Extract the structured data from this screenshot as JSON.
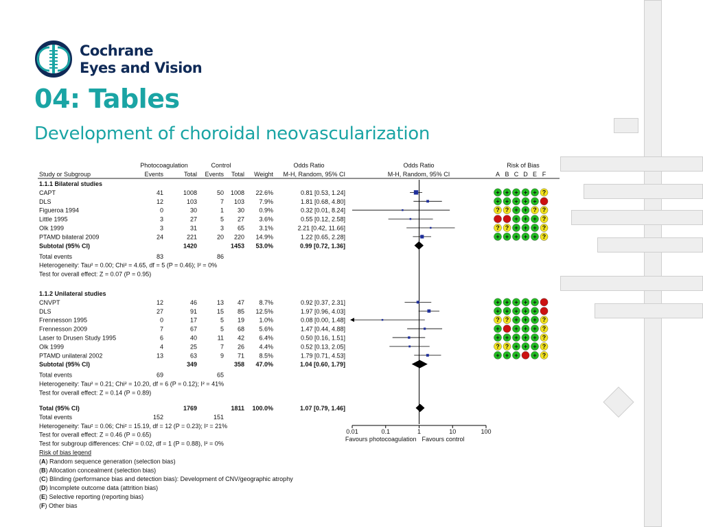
{
  "slide": {
    "brand_line1": "Cochrane",
    "brand_line2": "Eyes and Vision",
    "title": "04: Tables",
    "subtitle": "Development of choroidal neovascularization",
    "brand_color": "#0f2a57",
    "accent_color": "#1aa4a4"
  },
  "chart_data": {
    "type": "forest",
    "scale": "log",
    "xlim": [
      0.01,
      100
    ],
    "x_ticks": [
      "0.01",
      "0.1",
      "1",
      "10",
      "100"
    ],
    "favours_left": "Favours photocoagulation",
    "favours_right": "Favours control",
    "headers": {
      "group1": "Photocoagulation",
      "group2": "Control",
      "study": "Study or Subgroup",
      "events1": "Events",
      "total1": "Total",
      "events2": "Events",
      "total2": "Total",
      "weight": "Weight",
      "or_text_title": "Odds Ratio",
      "or_text_method": "M-H, Random, 95% CI",
      "or_plot_title": "Odds Ratio",
      "or_plot_method": "M-H, Random, 95% CI",
      "rob_title": "Risk of Bias",
      "rob_letters": [
        "A",
        "B",
        "C",
        "D",
        "E",
        "F"
      ]
    },
    "rob_colors": {
      "+": "#22bb22",
      "?": "#f2e21e",
      "-": "#cc1111"
    },
    "subgroups": [
      {
        "title": "1.1.1 Bilateral studies",
        "studies": [
          {
            "name": "CAPT",
            "e1": "41",
            "t1": "1008",
            "e2": "50",
            "t2": "1008",
            "weight": "22.6%",
            "ci_text": "0.81 [0.53, 1.24]",
            "or": 0.81,
            "lo": 0.53,
            "hi": 1.24,
            "w": 22.6,
            "rob": [
              "+",
              "+",
              "+",
              "+",
              "+",
              "?"
            ]
          },
          {
            "name": "DLS",
            "e1": "12",
            "t1": "103",
            "e2": "7",
            "t2": "103",
            "weight": "7.9%",
            "ci_text": "1.81 [0.68, 4.80]",
            "or": 1.81,
            "lo": 0.68,
            "hi": 4.8,
            "w": 7.9,
            "rob": [
              "+",
              "+",
              "+",
              "+",
              "+",
              "-"
            ]
          },
          {
            "name": "Figueroa 1994",
            "e1": "0",
            "t1": "30",
            "e2": "1",
            "t2": "30",
            "weight": "0.9%",
            "ci_text": "0.32 [0.01, 8.24]",
            "or": 0.32,
            "lo": 0.01,
            "hi": 8.24,
            "w": 0.9,
            "rob": [
              "?",
              "?",
              "+",
              "+",
              "?",
              "?"
            ]
          },
          {
            "name": "Little 1995",
            "e1": "3",
            "t1": "27",
            "e2": "5",
            "t2": "27",
            "weight": "3.6%",
            "ci_text": "0.55 [0.12, 2.58]",
            "or": 0.55,
            "lo": 0.12,
            "hi": 2.58,
            "w": 3.6,
            "rob": [
              "-",
              "-",
              "+",
              "+",
              "+",
              "?"
            ]
          },
          {
            "name": "Olk 1999",
            "e1": "3",
            "t1": "31",
            "e2": "3",
            "t2": "65",
            "weight": "3.1%",
            "ci_text": "2.21 [0.42, 11.66]",
            "or": 2.21,
            "lo": 0.42,
            "hi": 11.66,
            "w": 3.1,
            "rob": [
              "?",
              "?",
              "+",
              "+",
              "+",
              "?"
            ]
          },
          {
            "name": "PTAMD bilateral 2009",
            "e1": "24",
            "t1": "221",
            "e2": "20",
            "t2": "220",
            "weight": "14.9%",
            "ci_text": "1.22 [0.65, 2.28]",
            "or": 1.22,
            "lo": 0.65,
            "hi": 2.28,
            "w": 14.9,
            "rob": [
              "+",
              "+",
              "+",
              "+",
              "+",
              "?"
            ]
          }
        ],
        "subtotal": {
          "label": "Subtotal (95% CI)",
          "t1": "1420",
          "t2": "1453",
          "weight": "53.0%",
          "ci_text": "0.99 [0.72, 1.36]",
          "or": 0.99,
          "lo": 0.72,
          "hi": 1.36
        },
        "total_events": {
          "label": "Total events",
          "e1": "83",
          "e2": "86"
        },
        "heterogeneity": "Heterogeneity: Tau² = 0.00; Chi² = 4.65, df = 5 (P = 0.46); I² = 0%",
        "overall_effect": "Test for overall effect: Z = 0.07 (P = 0.95)"
      },
      {
        "title": "1.1.2 Unilateral studies",
        "studies": [
          {
            "name": "CNVPT",
            "e1": "12",
            "t1": "46",
            "e2": "13",
            "t2": "47",
            "weight": "8.7%",
            "ci_text": "0.92 [0.37, 2.31]",
            "or": 0.92,
            "lo": 0.37,
            "hi": 2.31,
            "w": 8.7,
            "rob": [
              "+",
              "+",
              "+",
              "+",
              "+",
              "-"
            ]
          },
          {
            "name": "DLS",
            "e1": "27",
            "t1": "91",
            "e2": "15",
            "t2": "85",
            "weight": "12.5%",
            "ci_text": "1.97 [0.96, 4.03]",
            "or": 1.97,
            "lo": 0.96,
            "hi": 4.03,
            "w": 12.5,
            "rob": [
              "+",
              "+",
              "+",
              "+",
              "+",
              "-"
            ]
          },
          {
            "name": "Frennesson 1995",
            "e1": "0",
            "t1": "17",
            "e2": "5",
            "t2": "19",
            "weight": "1.0%",
            "ci_text": "0.08 [0.00, 1.48]",
            "or": 0.08,
            "lo": 0.0,
            "hi": 1.48,
            "w": 1.0,
            "rob": [
              "?",
              "?",
              "+",
              "+",
              "+",
              "?"
            ]
          },
          {
            "name": "Frennesson 2009",
            "e1": "7",
            "t1": "67",
            "e2": "5",
            "t2": "68",
            "weight": "5.6%",
            "ci_text": "1.47 [0.44, 4.88]",
            "or": 1.47,
            "lo": 0.44,
            "hi": 4.88,
            "w": 5.6,
            "rob": [
              "+",
              "-",
              "+",
              "+",
              "+",
              "?"
            ]
          },
          {
            "name": "Laser to Drusen Study 1995",
            "e1": "6",
            "t1": "40",
            "e2": "11",
            "t2": "42",
            "weight": "6.4%",
            "ci_text": "0.50 [0.16, 1.51]",
            "or": 0.5,
            "lo": 0.16,
            "hi": 1.51,
            "w": 6.4,
            "rob": [
              "+",
              "+",
              "+",
              "+",
              "+",
              "?"
            ]
          },
          {
            "name": "Olk 1999",
            "e1": "4",
            "t1": "25",
            "e2": "7",
            "t2": "26",
            "weight": "4.4%",
            "ci_text": "0.52 [0.13, 2.05]",
            "or": 0.52,
            "lo": 0.13,
            "hi": 2.05,
            "w": 4.4,
            "rob": [
              "?",
              "?",
              "+",
              "+",
              "+",
              "?"
            ]
          },
          {
            "name": "PTAMD unilateral 2002",
            "e1": "13",
            "t1": "63",
            "e2": "9",
            "t2": "71",
            "weight": "8.5%",
            "ci_text": "1.79 [0.71, 4.53]",
            "or": 1.79,
            "lo": 0.71,
            "hi": 4.53,
            "w": 8.5,
            "rob": [
              "+",
              "+",
              "+",
              "-",
              "+",
              "?"
            ]
          }
        ],
        "subtotal": {
          "label": "Subtotal (95% CI)",
          "t1": "349",
          "t2": "358",
          "weight": "47.0%",
          "ci_text": "1.04 [0.60, 1.79]",
          "or": 1.04,
          "lo": 0.6,
          "hi": 1.79
        },
        "total_events": {
          "label": "Total events",
          "e1": "69",
          "e2": "65"
        },
        "heterogeneity": "Heterogeneity: Tau² = 0.21; Chi² = 10.20, df = 6 (P = 0.12); I² = 41%",
        "overall_effect": "Test for overall effect: Z = 0.14 (P = 0.89)"
      }
    ],
    "total": {
      "label": "Total (95% CI)",
      "t1": "1769",
      "t2": "1811",
      "weight": "100.0%",
      "ci_text": "1.07 [0.79, 1.46]",
      "or": 1.07,
      "lo": 0.79,
      "hi": 1.46
    },
    "total_events": {
      "label": "Total events",
      "e1": "152",
      "e2": "151"
    },
    "heterogeneity": "Heterogeneity: Tau² = 0.06; Chi² = 15.19, df = 12 (P = 0.23); I² = 21%",
    "overall_effect": "Test for overall effect: Z = 0.46 (P = 0.65)",
    "subgroup_diff": "Test for subgroup differences: Chi² = 0.02, df = 1 (P = 0.88), I² = 0%",
    "legend_title": "Risk of bias legend",
    "legend": [
      {
        "letter": "A",
        "text": " Random sequence generation (selection bias)"
      },
      {
        "letter": "B",
        "text": " Allocation concealment (selection bias)"
      },
      {
        "letter": "C",
        "text": " Blinding (performance bias and detection bias): Development of CNV/geographic atrophy"
      },
      {
        "letter": "D",
        "text": " Incomplete outcome data (attrition bias)"
      },
      {
        "letter": "E",
        "text": " Selective reporting (reporting bias)"
      },
      {
        "letter": "F",
        "text": " Other bias"
      }
    ]
  }
}
